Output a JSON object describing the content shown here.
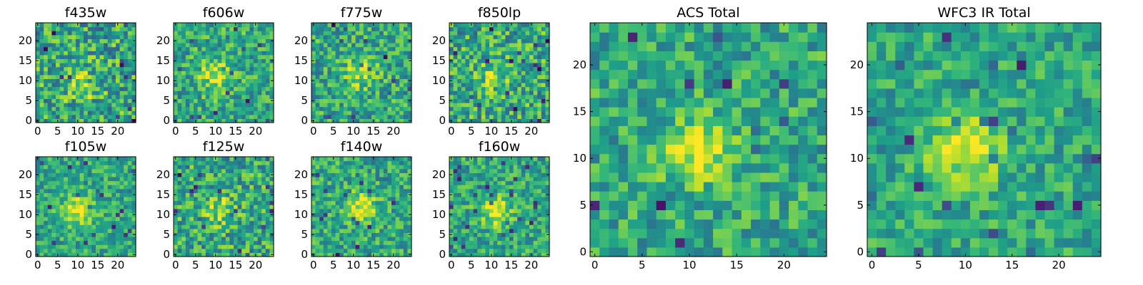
{
  "chart_data": [
    {
      "type": "heatmap",
      "title": "f435w",
      "grid_size": 25,
      "xticks": [
        "0",
        "5",
        "10",
        "15",
        "20"
      ],
      "yticks": [
        "0",
        "5",
        "10",
        "15",
        "20"
      ],
      "colormap": "viridis",
      "grid": false,
      "peak": [
        11,
        9
      ],
      "peak_level": 0.55,
      "noise": 0.42
    },
    {
      "type": "heatmap",
      "title": "f606w",
      "grid_size": 25,
      "xticks": [
        "0",
        "5",
        "10",
        "15",
        "20"
      ],
      "yticks": [
        "0",
        "5",
        "10",
        "15",
        "20"
      ],
      "colormap": "viridis",
      "grid": false,
      "peak": [
        10,
        11
      ],
      "peak_level": 0.75,
      "noise": 0.34
    },
    {
      "type": "heatmap",
      "title": "f775w",
      "grid_size": 25,
      "xticks": [
        "0",
        "5",
        "10",
        "15",
        "20"
      ],
      "yticks": [
        "0",
        "5",
        "10",
        "15",
        "20"
      ],
      "colormap": "viridis",
      "grid": false,
      "peak": [
        12,
        12
      ],
      "peak_level": 0.7,
      "noise": 0.34
    },
    {
      "type": "heatmap",
      "title": "f850lp",
      "grid_size": 25,
      "xticks": [
        "0",
        "5",
        "10",
        "15",
        "20"
      ],
      "yticks": [
        "0",
        "5",
        "10",
        "15",
        "20"
      ],
      "colormap": "viridis",
      "grid": false,
      "peak": [
        11,
        11
      ],
      "peak_level": 0.6,
      "noise": 0.4
    },
    {
      "type": "heatmap",
      "title": "f105w",
      "grid_size": 25,
      "xticks": [
        "0",
        "5",
        "10",
        "15",
        "20"
      ],
      "yticks": [
        "0",
        "5",
        "10",
        "15",
        "20"
      ],
      "colormap": "viridis",
      "grid": false,
      "peak": [
        10,
        11
      ],
      "peak_level": 0.8,
      "noise": 0.28
    },
    {
      "type": "heatmap",
      "title": "f125w",
      "grid_size": 25,
      "xticks": [
        "0",
        "5",
        "10",
        "15",
        "20"
      ],
      "yticks": [
        "0",
        "5",
        "10",
        "15",
        "20"
      ],
      "colormap": "viridis",
      "grid": false,
      "peak": [
        11,
        11
      ],
      "peak_level": 0.55,
      "noise": 0.38
    },
    {
      "type": "heatmap",
      "title": "f140w",
      "grid_size": 25,
      "xticks": [
        "0",
        "5",
        "10",
        "15",
        "20"
      ],
      "yticks": [
        "0",
        "5",
        "10",
        "15",
        "20"
      ],
      "colormap": "viridis",
      "grid": false,
      "peak": [
        12,
        12
      ],
      "peak_level": 0.72,
      "noise": 0.32
    },
    {
      "type": "heatmap",
      "title": "f160w",
      "grid_size": 25,
      "xticks": [
        "0",
        "5",
        "10",
        "15",
        "20"
      ],
      "yticks": [
        "0",
        "5",
        "10",
        "15",
        "20"
      ],
      "colormap": "viridis",
      "grid": false,
      "peak": [
        11,
        11
      ],
      "peak_level": 0.8,
      "noise": 0.3
    },
    {
      "type": "heatmap",
      "title": "ACS Total",
      "grid_size": 25,
      "xticks": [
        "0",
        "5",
        "10",
        "15",
        "20"
      ],
      "yticks": [
        "0",
        "5",
        "10",
        "15",
        "20"
      ],
      "colormap": "viridis",
      "grid": false,
      "peak": [
        11,
        11
      ],
      "peak_level": 0.8,
      "noise": 0.3
    },
    {
      "type": "heatmap",
      "title": "WFC3 IR Total",
      "grid_size": 25,
      "xticks": [
        "0",
        "5",
        "10",
        "15",
        "20"
      ],
      "yticks": [
        "0",
        "5",
        "10",
        "15",
        "20"
      ],
      "colormap": "viridis",
      "grid": false,
      "peak": [
        10,
        11
      ],
      "peak_level": 0.85,
      "noise": 0.26
    }
  ]
}
